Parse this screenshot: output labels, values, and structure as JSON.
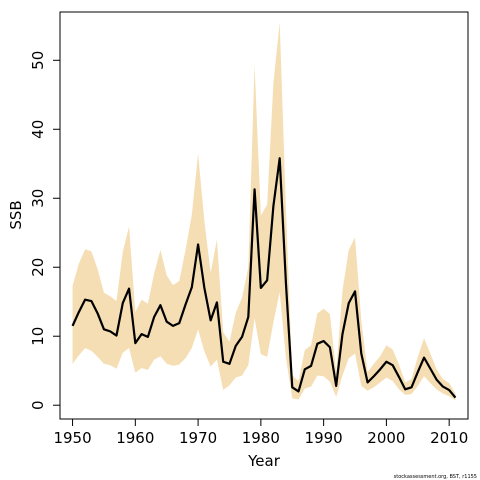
{
  "chart_data": {
    "type": "line",
    "xlabel": "Year",
    "ylabel": "SSB",
    "xlim": [
      1948,
      2013
    ],
    "ylim": [
      -2,
      57
    ],
    "xticks": [
      1950,
      1960,
      1970,
      1980,
      1990,
      2000,
      2010
    ],
    "yticks": [
      0,
      10,
      20,
      30,
      40,
      50
    ],
    "grid": false,
    "colors": {
      "line": "#000000",
      "band": "#f5deb3",
      "frame": "#000000"
    },
    "x": [
      1950,
      1951,
      1952,
      1953,
      1954,
      1955,
      1956,
      1957,
      1958,
      1959,
      1960,
      1961,
      1962,
      1963,
      1964,
      1965,
      1966,
      1967,
      1968,
      1969,
      1970,
      1971,
      1972,
      1973,
      1974,
      1975,
      1976,
      1977,
      1978,
      1979,
      1980,
      1981,
      1982,
      1983,
      1984,
      1985,
      1986,
      1987,
      1988,
      1989,
      1990,
      1991,
      1992,
      1993,
      1994,
      1995,
      1996,
      1997,
      1998,
      1999,
      2000,
      2001,
      2002,
      2003,
      2004,
      2005,
      2006,
      2007,
      2008,
      2009,
      2010,
      2011
    ],
    "series": [
      {
        "values": [
          11.5,
          13.5,
          15.3,
          15.1,
          13.3,
          11.0,
          10.7,
          10.1,
          14.8,
          16.9,
          9.0,
          10.3,
          9.9,
          12.8,
          14.5,
          12.1,
          11.5,
          11.9,
          14.6,
          17.1,
          23.3,
          17.0,
          12.3,
          14.9,
          6.3,
          6.0,
          8.6,
          9.9,
          12.8,
          31.3,
          17.0,
          18.1,
          28.9,
          35.8,
          17.6,
          2.6,
          2.0,
          5.2,
          5.7,
          8.9,
          9.3,
          8.4,
          2.8,
          10.3,
          14.8,
          16.5,
          7.5,
          3.3,
          4.2,
          5.2,
          6.3,
          5.8,
          4.1,
          2.3,
          2.6,
          4.8,
          6.9,
          5.3,
          3.7,
          2.7,
          2.2,
          1.1
        ],
        "lower": [
          6.0,
          7.2,
          8.3,
          7.9,
          7.0,
          6.0,
          5.8,
          5.3,
          7.6,
          8.3,
          4.7,
          5.4,
          5.1,
          6.6,
          7.1,
          6.0,
          5.7,
          5.9,
          6.8,
          8.3,
          11.0,
          7.8,
          5.6,
          6.6,
          2.2,
          2.9,
          4.0,
          4.3,
          5.8,
          12.6,
          7.4,
          7.0,
          12.0,
          16.4,
          6.8,
          1.0,
          0.8,
          2.4,
          2.7,
          4.3,
          4.2,
          3.4,
          1.2,
          4.3,
          6.8,
          7.5,
          2.8,
          2.1,
          2.6,
          3.3,
          4.0,
          3.5,
          2.3,
          1.5,
          1.6,
          2.8,
          4.2,
          3.2,
          2.3,
          1.7,
          1.3,
          0.7
        ],
        "upper": [
          17.3,
          20.5,
          22.6,
          22.3,
          19.7,
          16.3,
          15.8,
          15.1,
          22.2,
          25.9,
          13.5,
          15.3,
          14.7,
          19.1,
          22.5,
          18.8,
          17.4,
          18.0,
          22.5,
          27.6,
          36.5,
          26.7,
          19.2,
          24.0,
          10.6,
          9.2,
          13.4,
          15.6,
          20.0,
          49.3,
          27.5,
          29.1,
          46.7,
          55.5,
          28.4,
          4.3,
          3.5,
          8.0,
          8.7,
          13.3,
          14.0,
          13.2,
          4.8,
          16.6,
          22.5,
          24.3,
          12.3,
          4.8,
          6.0,
          7.1,
          8.7,
          8.1,
          5.9,
          3.3,
          3.8,
          7.0,
          9.7,
          7.5,
          5.2,
          3.8,
          3.2,
          1.7
        ]
      }
    ]
  },
  "credit_text": "stockassessment.org, BST, r1155"
}
